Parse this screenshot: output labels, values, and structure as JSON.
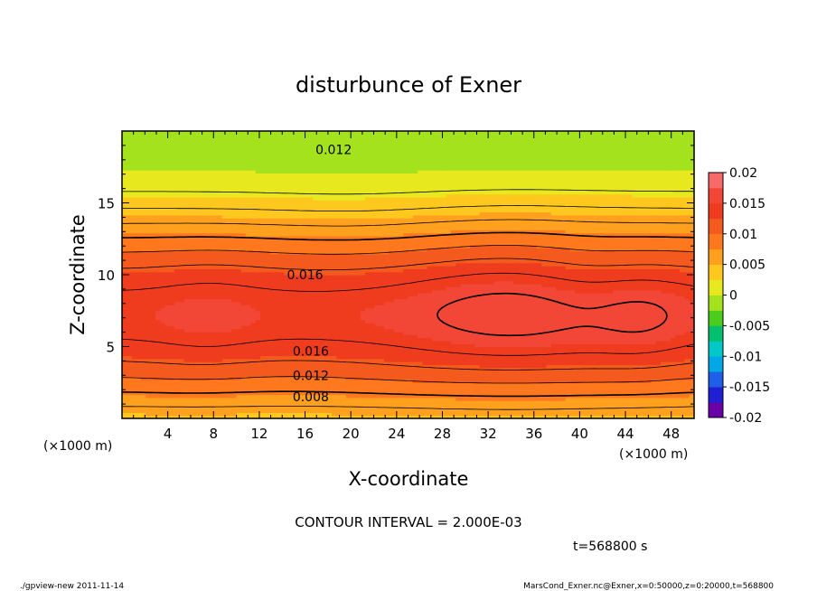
{
  "chart_data": {
    "type": "heatmap",
    "title": "disturbunce of Exner",
    "xlabel": "X-coordinate",
    "ylabel": "Z-coordinate",
    "x_unit": "(×1000 m)",
    "x_unit_right": "(×1000 m)",
    "xlim": [
      0,
      50
    ],
    "ylim": [
      0,
      20
    ],
    "x_ticks": [
      "4",
      "8",
      "12",
      "16",
      "20",
      "24",
      "28",
      "32",
      "36",
      "40",
      "44",
      "48"
    ],
    "y_ticks": [
      "5",
      "10",
      "15"
    ],
    "contour_interval_text": "CONTOUR INTERVAL = 2.000E-03",
    "contour_labels": [
      {
        "text": "0.012",
        "x": 18.5,
        "y": 18.7
      },
      {
        "text": "0.016",
        "x": 16.0,
        "y": 10.0
      },
      {
        "text": "0.016",
        "x": 16.5,
        "y": 4.7
      },
      {
        "text": "0.012",
        "x": 16.5,
        "y": 3.0
      },
      {
        "text": "0.008",
        "x": 16.5,
        "y": 1.5
      }
    ],
    "time_label": "t=568800 s",
    "colorbar": {
      "labels": [
        "0.02",
        "0.015",
        "0.01",
        "0.005",
        "0",
        "-0.005",
        "-0.01",
        "-0.015",
        "-0.02"
      ],
      "range": [
        -0.02,
        0.02
      ],
      "colors": [
        "#6a00a8",
        "#1f1fd6",
        "#1f5fe8",
        "#00a6e6",
        "#00c8c8",
        "#00c070",
        "#4ccd1e",
        "#a4e21e",
        "#e8e81e",
        "#ffc81e",
        "#ffa01e",
        "#ff781e",
        "#f45a1e",
        "#f03c1e",
        "#f24636",
        "#f76a6a"
      ]
    },
    "contour_levels": [
      0.002,
      0.004,
      0.006,
      0.008,
      0.01,
      0.012,
      0.014,
      0.016,
      0.018
    ],
    "grid": false
  },
  "footer": {
    "left": "./gpview-new  2011-11-14",
    "right": "MarsCond_Exner.nc@Exner,x=0:50000,z=0:20000,t=568800"
  }
}
